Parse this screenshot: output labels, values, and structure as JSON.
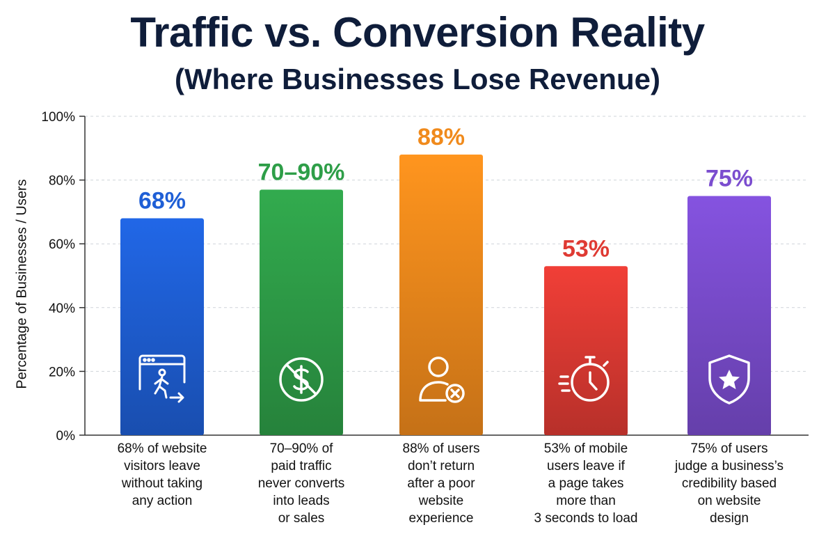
{
  "title": "Traffic vs. Conversion Reality",
  "subtitle": "(Where Businesses Lose Revenue)",
  "chart_data": {
    "type": "bar",
    "title": "Traffic vs. Conversion Reality",
    "subtitle": "(Where Businesses Lose Revenue)",
    "xlabel": "",
    "ylabel": "Percentage of Businesses / Users",
    "ylim": [
      0,
      100
    ],
    "yticks": [
      "0%",
      "20%",
      "40%",
      "60%",
      "80%",
      "100%"
    ],
    "grid": true,
    "categories": [
      "68% of website visitors leave without taking any action",
      "70–90% of paid traffic never converts into leads or sales",
      "88% of users don’t return after a poor website experience",
      "53% of mobile users leave if a page takes more than 3 seconds to load",
      "75% of users judge a business’s credibility based on website design"
    ],
    "category_lines": [
      [
        "68% of website",
        "visitors leave",
        "without taking",
        "any action"
      ],
      [
        "70–90% of",
        "paid traffic",
        "never converts",
        "into leads",
        "or sales"
      ],
      [
        "88% of users",
        "don’t return",
        "after a poor",
        "website",
        "experience"
      ],
      [
        "53% of mobile",
        "users leave if",
        "a page takes",
        "more than",
        "3 seconds to load"
      ],
      [
        "75% of users",
        "judge a business’s",
        "credibility based",
        "on website",
        "design"
      ]
    ],
    "values": [
      68,
      77,
      88,
      53,
      75
    ],
    "value_labels": [
      "68%",
      "70–90%",
      "88%",
      "53%",
      "75%"
    ],
    "colors": [
      "#1f5fd6",
      "#2e9e48",
      "#f08a1c",
      "#df3a33",
      "#7b4dcf"
    ],
    "icons": [
      "walking-exit-icon",
      "no-dollar-icon",
      "user-remove-icon",
      "stopwatch-icon",
      "shield-star-icon"
    ]
  }
}
